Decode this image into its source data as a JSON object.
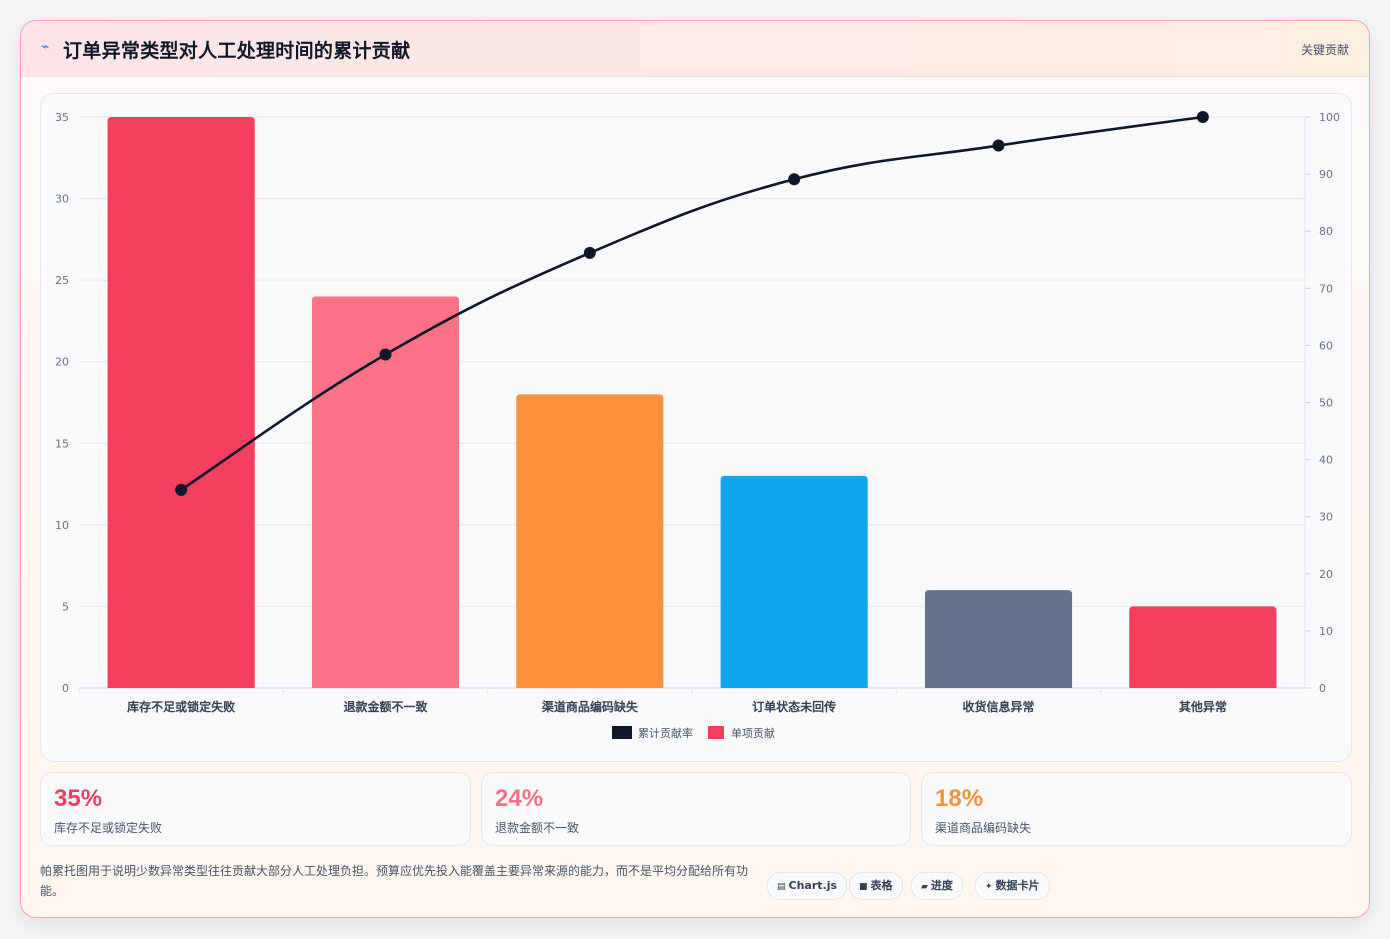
{
  "header": {
    "icon": "bolt-icon",
    "title": "订单异常类型对人工处理时间的累计贡献",
    "tag": "关键贡献"
  },
  "chart_data": {
    "type": "bar",
    "categories": [
      "库存不足或锁定失败",
      "退款金额不一致",
      "渠道商品编码缺失",
      "订单状态未回传",
      "收货信息异常",
      "其他异常"
    ],
    "series": [
      {
        "name": "单项贡献",
        "values": [
          35,
          24,
          18,
          13,
          6,
          5
        ],
        "colors": [
          "#f43f5e",
          "#fb7185",
          "#fb923c",
          "#0ea5e9",
          "#64748b",
          "#f43f5e"
        ]
      },
      {
        "name": "累计贡献率",
        "type": "line",
        "axis": "right",
        "values": [
          34.7,
          58.4,
          76.2,
          89.1,
          95.0,
          100
        ],
        "color": "#0f172a"
      }
    ],
    "y_left": {
      "ylim": [
        0,
        35
      ],
      "ticks": [
        "0",
        "5",
        "10",
        "15",
        "20",
        "25",
        "30",
        "35"
      ]
    },
    "y_right": {
      "ylim": [
        0,
        100
      ],
      "ticks": [
        "0",
        "10",
        "20",
        "30",
        "40",
        "50",
        "60",
        "70",
        "80",
        "90",
        "100"
      ]
    },
    "legend": {
      "position": "bottom",
      "items": [
        {
          "label": "累计贡献率",
          "color": "#0f172a"
        },
        {
          "label": "单项贡献",
          "color": "#f43f5e"
        }
      ]
    },
    "grid": true
  },
  "stats": [
    {
      "value": "35%",
      "label": "库存不足或锁定失败",
      "color": "#f43f5e"
    },
    {
      "value": "24%",
      "label": "退款金额不一致",
      "color": "#fb7185"
    },
    {
      "value": "18%",
      "label": "渠道商品编码缺失",
      "color": "#fb923c"
    }
  ],
  "note": "帕累托图用于说明少数异常类型往往贡献大部分人工处理负担。预算应优先投入能覆盖主要异常来源的能力，而不是平均分配给所有功能。",
  "chips": [
    {
      "icon": "chart-icon",
      "label": "Chart.js"
    },
    {
      "icon": "table-icon",
      "label": "表格"
    },
    {
      "icon": "progress-icon",
      "label": "进度"
    },
    {
      "icon": "sparkle-icon",
      "label": "数据卡片"
    }
  ]
}
